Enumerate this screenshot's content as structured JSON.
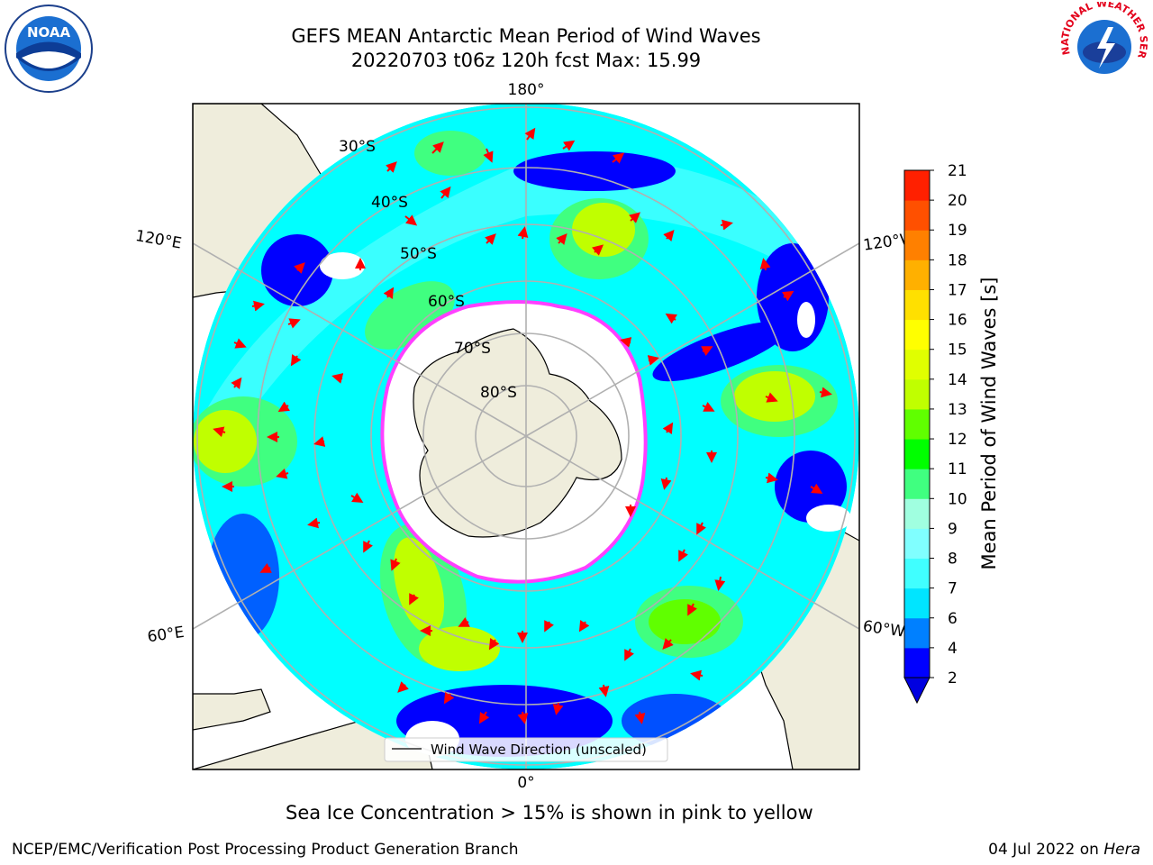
{
  "title": {
    "line1": "GEFS MEAN Antarctic Mean Period of Wind Waves",
    "line2": "20220703 t06z 120h fcst   Max: 15.99"
  },
  "map": {
    "meridian_labels": {
      "top": "180°",
      "bottom": "0°",
      "upper_left": "120°E",
      "lower_left": "60°E",
      "upper_right": "120°W",
      "lower_right": "60°W"
    },
    "latitude_labels": [
      "30°S",
      "40°S",
      "50°S",
      "60°S",
      "70°S",
      "80°S"
    ],
    "legend_label": "Wind Wave Direction (unscaled)",
    "colors": {
      "land": "#efeddc",
      "ocean_low": "#0000ff",
      "ocean_mid": "#00e5ff",
      "ocean_high": "#00ff00",
      "ice_edge": "#ff40ff",
      "arrow": "#ff0000",
      "grid": "#b0b0b0"
    }
  },
  "colorbar": {
    "label": "Mean Period of Wind Waves [s]",
    "ticks": [
      "2",
      "4",
      "6",
      "7",
      "8",
      "9",
      "10",
      "11",
      "12",
      "13",
      "14",
      "15",
      "16",
      "17",
      "18",
      "19",
      "20",
      "21"
    ],
    "colors": [
      "#0000ff",
      "#0080ff",
      "#00e5ff",
      "#40ffff",
      "#80ffff",
      "#a0ffe0",
      "#40ff80",
      "#00ff00",
      "#60ff00",
      "#c0ff00",
      "#e0ff00",
      "#ffff00",
      "#ffe000",
      "#ffb000",
      "#ff8000",
      "#ff5000",
      "#ff2000"
    ],
    "extend_color": "#0000e0"
  },
  "caption": "Sea Ice Concentration > 15% is shown in pink to yellow",
  "footer": {
    "left": "NCEP/EMC/Verification Post Processing Product Generation Branch",
    "right_date": "04 Jul 2022 on ",
    "right_machine": "Hera"
  },
  "logos": {
    "left": "NOAA",
    "right": "NATIONAL WEATHER SERVICE"
  }
}
